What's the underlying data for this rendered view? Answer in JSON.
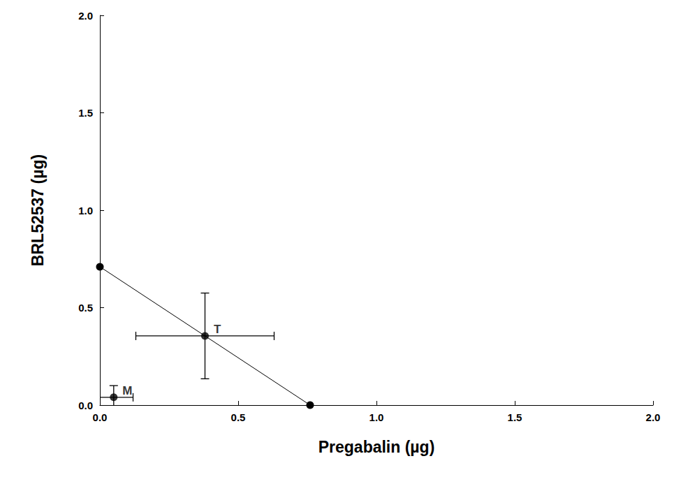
{
  "chart_data": {
    "type": "scatter",
    "x_label": "Pregabalin (µg)",
    "y_label": "BRL52537 (µg)",
    "xlim": [
      0,
      2
    ],
    "ylim": [
      0,
      2
    ],
    "xticks": [
      {
        "value": 0,
        "label": "0.0"
      },
      {
        "value": 0.5,
        "label": "0.5"
      },
      {
        "value": 1,
        "label": "1.0"
      },
      {
        "value": 1.5,
        "label": "1.5"
      },
      {
        "value": 2,
        "label": "2.0"
      }
    ],
    "yticks": [
      {
        "value": 0,
        "label": "0.0"
      },
      {
        "value": 0.5,
        "label": "0.5"
      },
      {
        "value": 1,
        "label": "1.0"
      },
      {
        "value": 1.5,
        "label": "1.5"
      },
      {
        "value": 2,
        "label": "2.0"
      }
    ],
    "grid": false,
    "series": [
      {
        "type": "line",
        "marker": "circle",
        "color": "#000000",
        "x": [
          0,
          0.76
        ],
        "values": [
          0.71,
          0
        ]
      },
      {
        "type": "scatter",
        "marker": "circle",
        "color": "#000000",
        "x": [
          0.38,
          0.05
        ],
        "values": [
          0.355,
          0.04
        ],
        "labels": [
          "T",
          "M"
        ],
        "x_error": [
          0.25,
          0.07
        ],
        "y_error": [
          0.22,
          0.06
        ]
      }
    ]
  }
}
